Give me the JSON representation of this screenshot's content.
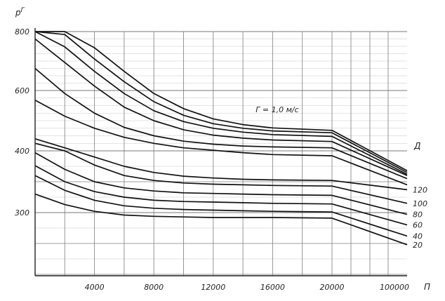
{
  "chart_data": {
    "type": "line",
    "title": "",
    "annotation": "Г = 1,0 м/с",
    "ylabel": "p^Г",
    "xlabel": "П",
    "legend_title": "Д",
    "x_tick_labels": [
      "4000",
      "8000",
      "12000",
      "16000",
      "20000",
      "100000"
    ],
    "x_tick_values": [
      4000,
      8000,
      12000,
      16000,
      20000,
      100000
    ],
    "y_tick_labels": [
      "800",
      "600",
      "400",
      "300"
    ],
    "y_tick_values": [
      800,
      600,
      400,
      300
    ],
    "ylim": [
      175,
      800
    ],
    "x_positions": [
      0,
      2000,
      4000,
      6000,
      8000,
      10000,
      12000,
      14000,
      16000,
      20000,
      100000
    ],
    "x_axis_note": "linear 0–20000, then compressed break to 100000",
    "grid": true,
    "series": [
      {
        "name": "20",
        "values": [
          330,
          313,
          302,
          296,
          294,
          293,
          292,
          292,
          292,
          291,
          248
        ]
      },
      {
        "name": "40",
        "values": [
          360,
          336,
          320,
          311,
          307,
          305,
          304,
          303,
          302,
          301,
          262
        ]
      },
      {
        "name": "60",
        "values": [
          376,
          350,
          334,
          325,
          320,
          318,
          317,
          316,
          315,
          314,
          280
        ]
      },
      {
        "name": "80",
        "values": [
          397,
          370,
          350,
          340,
          335,
          332,
          331,
          330,
          329,
          328,
          297
        ]
      },
      {
        "name": "100",
        "values": [
          425,
          400,
          377,
          360,
          352,
          348,
          346,
          345,
          344,
          343,
          315
        ]
      },
      {
        "name": "120",
        "values": [
          440,
          410,
          390,
          375,
          365,
          359,
          356,
          354,
          353,
          352,
          337
        ]
      },
      {
        "name": "",
        "values": [
          568,
          515,
          475,
          445,
          425,
          410,
          402,
          397,
          394,
          392,
          345
        ]
      },
      {
        "name": "",
        "values": [
          675,
          590,
          525,
          478,
          450,
          432,
          422,
          416,
          413,
          410,
          355
        ]
      },
      {
        "name": "",
        "values": [
          775,
          695,
          615,
          545,
          500,
          470,
          452,
          442,
          436,
          431,
          360
        ]
      },
      {
        "name": "",
        "values": [
          800,
          748,
          665,
          590,
          533,
          497,
          475,
          462,
          454,
          448,
          362
        ]
      },
      {
        "name": "",
        "values": [
          800,
          790,
          707,
          630,
          563,
          518,
          490,
          475,
          466,
          460,
          365
        ]
      },
      {
        "name": "",
        "values": [
          800,
          800,
          745,
          665,
          590,
          540,
          506,
          487,
          476,
          468,
          368
        ]
      }
    ]
  }
}
